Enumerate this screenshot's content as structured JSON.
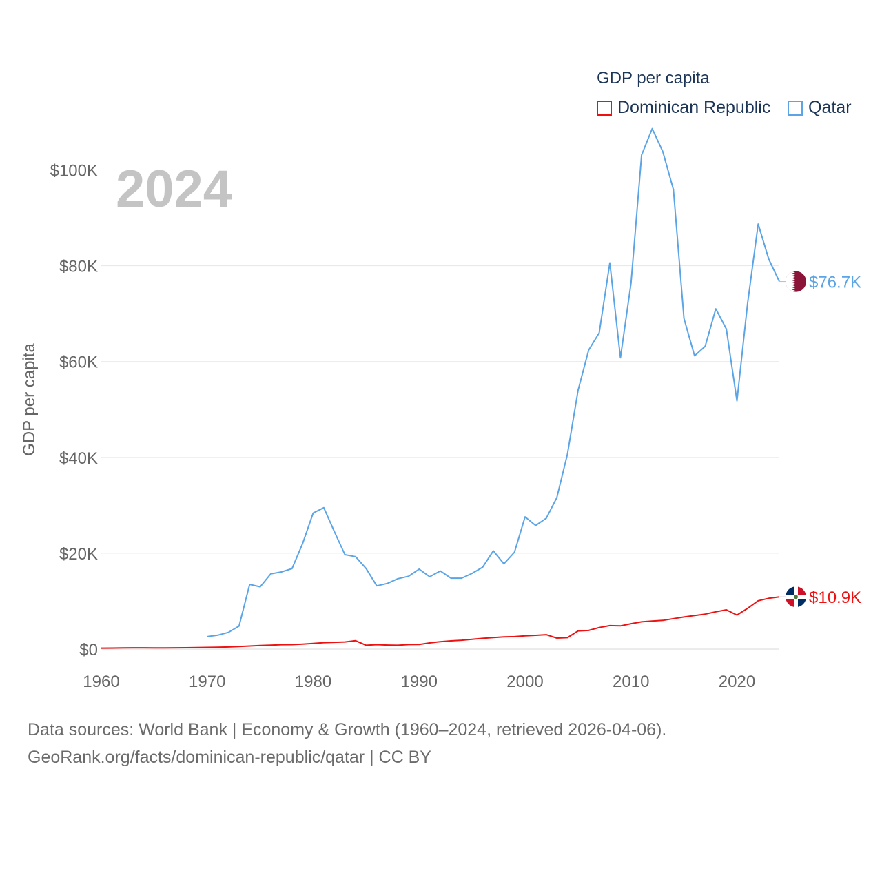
{
  "legend": {
    "title": "GDP per capita",
    "items": [
      {
        "label": "Dominican Republic",
        "color": "#ee1111"
      },
      {
        "label": "Qatar",
        "color": "#5ba4e5"
      }
    ]
  },
  "sources": {
    "line1": "Data sources: World Bank | Economy & Growth (1960–2024, retrieved 2026-04-06).",
    "line2": "GeoRank.org/facts/dominican-republic/qatar | CC BY"
  },
  "chart_data": {
    "type": "line",
    "year_label": "2024",
    "title": "GDP per capita",
    "xlabel": "",
    "ylabel": "GDP per capita",
    "xlim": [
      1960,
      2024
    ],
    "ylim": [
      0,
      110000
    ],
    "x_ticks": [
      1960,
      1970,
      1980,
      1990,
      2000,
      2010,
      2020
    ],
    "x_tick_labels": [
      "1960",
      "1970",
      "1980",
      "1990",
      "2000",
      "2010",
      "2020"
    ],
    "y_ticks": [
      0,
      20000,
      40000,
      60000,
      80000,
      100000
    ],
    "y_tick_labels": [
      "$0",
      "$20K",
      "$40K",
      "$60K",
      "$80K",
      "$100K"
    ],
    "grid": true,
    "series": [
      {
        "name": "Dominican Republic",
        "color": "#ee1111",
        "end_label": "$10.9K",
        "flag": "dominican-republic-flag-icon",
        "x": [
          1960,
          1961,
          1962,
          1963,
          1964,
          1965,
          1966,
          1967,
          1968,
          1969,
          1970,
          1971,
          1972,
          1973,
          1974,
          1975,
          1976,
          1977,
          1978,
          1979,
          1980,
          1981,
          1982,
          1983,
          1984,
          1985,
          1986,
          1987,
          1988,
          1989,
          1990,
          1991,
          1992,
          1993,
          1994,
          1995,
          1996,
          1997,
          1998,
          1999,
          2000,
          2001,
          2002,
          2003,
          2004,
          2005,
          2006,
          2007,
          2008,
          2009,
          2010,
          2011,
          2012,
          2013,
          2014,
          2015,
          2016,
          2017,
          2018,
          2019,
          2020,
          2021,
          2022,
          2023,
          2024
        ],
        "values": [
          200,
          210,
          240,
          270,
          280,
          250,
          260,
          280,
          290,
          310,
          360,
          400,
          450,
          530,
          640,
          760,
          820,
          920,
          940,
          1050,
          1200,
          1350,
          1420,
          1500,
          1750,
          800,
          930,
          850,
          800,
          950,
          960,
          1300,
          1550,
          1720,
          1860,
          2050,
          2250,
          2400,
          2560,
          2600,
          2770,
          2880,
          3000,
          2300,
          2380,
          3800,
          3900,
          4500,
          4900,
          4850,
          5300,
          5700,
          5850,
          6000,
          6350,
          6700,
          7000,
          7300,
          7800,
          8200,
          7100,
          8500,
          10100,
          10600,
          10900
        ]
      },
      {
        "name": "Qatar",
        "color": "#5ba4e5",
        "end_label": "$76.7K",
        "flag": "qatar-flag-icon",
        "x": [
          1970,
          1971,
          1972,
          1973,
          1974,
          1975,
          1976,
          1977,
          1978,
          1979,
          1980,
          1981,
          1982,
          1983,
          1984,
          1985,
          1986,
          1987,
          1988,
          1989,
          1990,
          1991,
          1992,
          1993,
          1994,
          1995,
          1996,
          1997,
          1998,
          1999,
          2000,
          2001,
          2002,
          2003,
          2004,
          2005,
          2006,
          2007,
          2008,
          2009,
          2010,
          2011,
          2012,
          2013,
          2014,
          2015,
          2016,
          2017,
          2018,
          2019,
          2020,
          2021,
          2022,
          2023,
          2024
        ],
        "values": [
          2600,
          2900,
          3500,
          4800,
          13500,
          13000,
          15700,
          16100,
          16800,
          22000,
          28400,
          29500,
          24500,
          19700,
          19300,
          16800,
          13200,
          13700,
          14700,
          15200,
          16700,
          15100,
          16300,
          14800,
          14800,
          15800,
          17100,
          20500,
          17800,
          20200,
          27600,
          25800,
          27300,
          31600,
          40700,
          54000,
          62400,
          66000,
          80600,
          60800,
          76400,
          103100,
          108600,
          103800,
          95900,
          69000,
          61200,
          63200,
          71000,
          66800,
          51800,
          72100,
          88700,
          81400,
          76700
        ]
      }
    ]
  }
}
